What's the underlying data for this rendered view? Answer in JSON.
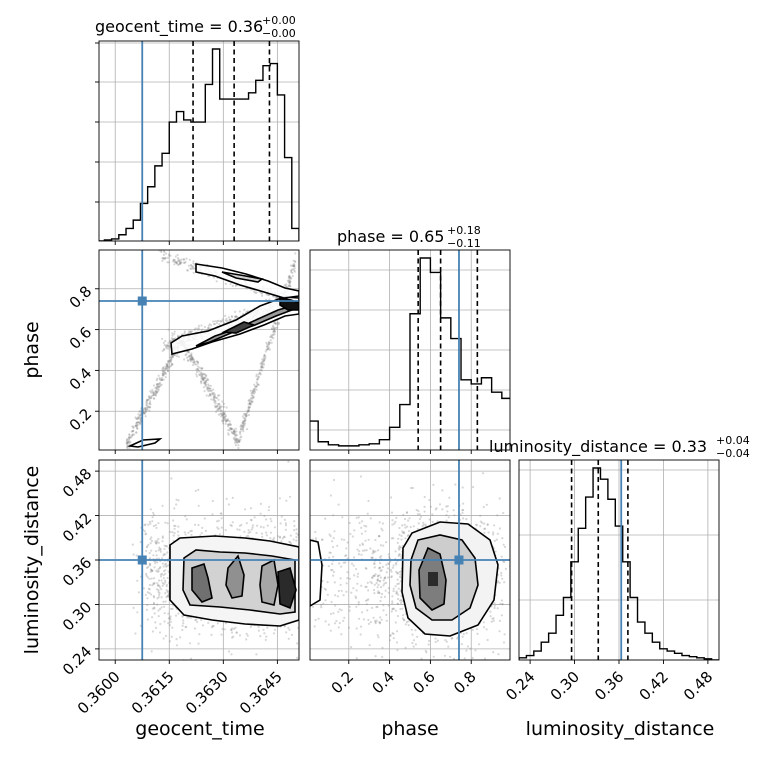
{
  "truth_color": "#4682b4",
  "chart_data": [
    {
      "type": "histogram",
      "panel": "geocent_time",
      "title_main": "geocent_time = 0.36",
      "title_sup": "+0.00",
      "title_sub": "−0.00",
      "xlim": [
        0.35955,
        0.3651
      ],
      "bins_left": [
        0.3595,
        0.3597,
        0.3599,
        0.3601,
        0.3603,
        0.3605,
        0.3607,
        0.3609,
        0.3611,
        0.3613,
        0.3615,
        0.3617,
        0.3619,
        0.3621,
        0.3623,
        0.3625,
        0.3627,
        0.3629,
        0.3631,
        0.3633,
        0.3635,
        0.3637,
        0.3639,
        0.3641,
        0.3643,
        0.3645,
        0.3647,
        0.3649
      ],
      "bin_width": 0.0002,
      "density": [
        0.0,
        0.005,
        0.01,
        0.03,
        0.06,
        0.1,
        0.18,
        0.26,
        0.36,
        0.42,
        0.57,
        0.62,
        0.58,
        0.57,
        0.57,
        0.75,
        0.92,
        0.68,
        0.68,
        0.68,
        0.68,
        0.71,
        0.77,
        0.84,
        0.85,
        0.7,
        0.4,
        0.06
      ],
      "quantiles": [
        0.36216,
        0.3633,
        0.36428
      ],
      "truth": 0.36075
    },
    {
      "type": "contour_scatter",
      "panel": "phase_vs_geocent_time",
      "xlim": [
        0.35955,
        0.3651
      ],
      "ylim": [
        0.01,
        0.99
      ],
      "ylabel": "phase",
      "yticks": [
        "0.2",
        "0.4",
        "0.6",
        "0.8"
      ],
      "ytick_values": [
        0.2,
        0.4,
        0.6,
        0.8
      ],
      "truth": [
        0.36075,
        0.74
      ]
    },
    {
      "type": "histogram",
      "panel": "phase",
      "title_main": "phase = 0.65",
      "title_sup": "+0.18",
      "title_sub": "−0.11",
      "xlim": [
        0.01,
        0.99
      ],
      "bins_left": [
        0.0,
        0.05,
        0.1,
        0.15,
        0.2,
        0.25,
        0.3,
        0.35,
        0.4,
        0.45,
        0.5,
        0.55,
        0.6,
        0.65,
        0.7,
        0.75,
        0.8,
        0.85,
        0.9,
        0.95
      ],
      "bin_width": 0.05,
      "density": [
        0.14,
        0.04,
        0.025,
        0.02,
        0.02,
        0.025,
        0.03,
        0.05,
        0.11,
        0.22,
        0.66,
        0.93,
        0.86,
        0.64,
        0.54,
        0.34,
        0.32,
        0.35,
        0.28,
        0.25
      ],
      "quantiles": [
        0.54,
        0.65,
        0.83
      ],
      "truth": 0.74
    },
    {
      "type": "contour_scatter",
      "panel": "luminosity_distance_vs_geocent_time",
      "xlim": [
        0.35955,
        0.3651
      ],
      "ylim": [
        0.225,
        0.495
      ],
      "xlabel": "geocent_time",
      "ylabel": "luminosity_distance",
      "xticks": [
        "0.3600",
        "0.3615",
        "0.3630",
        "0.3645"
      ],
      "xtick_values": [
        0.36,
        0.3615,
        0.363,
        0.3645
      ],
      "yticks": [
        "0.24",
        "0.30",
        "0.36",
        "0.42",
        "0.48"
      ],
      "ytick_values": [
        0.24,
        0.3,
        0.36,
        0.42,
        0.48
      ],
      "truth": [
        0.36075,
        0.36
      ]
    },
    {
      "type": "contour_scatter",
      "panel": "luminosity_distance_vs_phase",
      "xlim": [
        0.01,
        0.99
      ],
      "ylim": [
        0.225,
        0.495
      ],
      "xlabel": "phase",
      "xticks": [
        "0.2",
        "0.4",
        "0.6",
        "0.8"
      ],
      "xtick_values": [
        0.2,
        0.4,
        0.6,
        0.8
      ],
      "truth": [
        0.74,
        0.36
      ]
    },
    {
      "type": "histogram",
      "panel": "luminosity_distance",
      "title_main": "luminosity_distance = 0.33",
      "title_sup": "+0.04",
      "title_sub": "−0.04",
      "xlim": [
        0.225,
        0.495
      ],
      "xlabel": "luminosity_distance",
      "xticks": [
        "0.24",
        "0.30",
        "0.36",
        "0.42",
        "0.48"
      ],
      "xtick_values": [
        0.24,
        0.3,
        0.36,
        0.42,
        0.48
      ],
      "bins_left": [
        0.225,
        0.235,
        0.245,
        0.255,
        0.265,
        0.275,
        0.285,
        0.295,
        0.305,
        0.315,
        0.325,
        0.335,
        0.345,
        0.355,
        0.365,
        0.375,
        0.385,
        0.395,
        0.405,
        0.415,
        0.425,
        0.435,
        0.445,
        0.455,
        0.465,
        0.475,
        0.485
      ],
      "bin_width": 0.01,
      "density": [
        0.01,
        0.02,
        0.04,
        0.08,
        0.12,
        0.2,
        0.28,
        0.44,
        0.59,
        0.73,
        0.86,
        0.81,
        0.72,
        0.6,
        0.44,
        0.28,
        0.17,
        0.12,
        0.08,
        0.05,
        0.04,
        0.03,
        0.02,
        0.015,
        0.01,
        0.005,
        0.0
      ],
      "quantiles": [
        0.296,
        0.332,
        0.372
      ],
      "truth": 0.363
    }
  ]
}
